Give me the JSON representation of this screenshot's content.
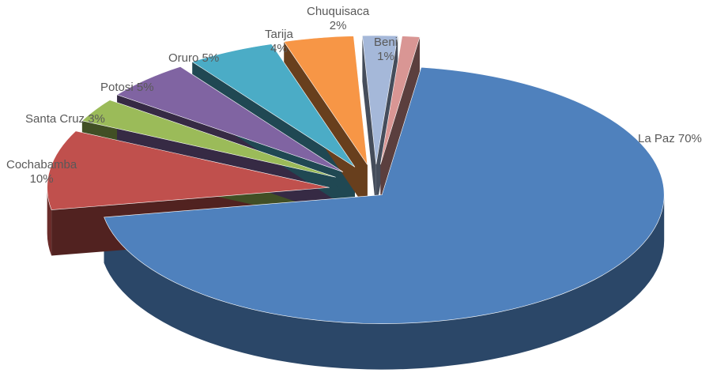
{
  "chart_data": {
    "type": "pie",
    "title": "",
    "slices": [
      {
        "name": "La Paz",
        "label_lines": [
          "La Paz 70%"
        ],
        "value": 70,
        "color": "#4f81bd"
      },
      {
        "name": "Cochabamba",
        "label_lines": [
          "Cochabamba",
          "10%"
        ],
        "value": 10,
        "color": "#c0504d"
      },
      {
        "name": "Santa Cruz",
        "label_lines": [
          "Santa Cruz  3%"
        ],
        "value": 3,
        "color": "#9bbb59"
      },
      {
        "name": "Potosi",
        "label_lines": [
          "Potosi  5%"
        ],
        "value": 5,
        "color": "#8064a2"
      },
      {
        "name": "Oruro",
        "label_lines": [
          "Oruro  5%"
        ],
        "value": 5,
        "color": "#4bacc6"
      },
      {
        "name": "Tarija",
        "label_lines": [
          "Tarija",
          "4%"
        ],
        "value": 4,
        "color": "#f79646"
      },
      {
        "name": "Chuquisaca",
        "label_lines": [
          "Chuquisaca",
          "2%"
        ],
        "value": 2,
        "color": "#a5b8d9"
      },
      {
        "name": "Beni",
        "label_lines": [
          "Beni",
          "1%"
        ],
        "value": 1,
        "color": "#d99694"
      }
    ]
  }
}
